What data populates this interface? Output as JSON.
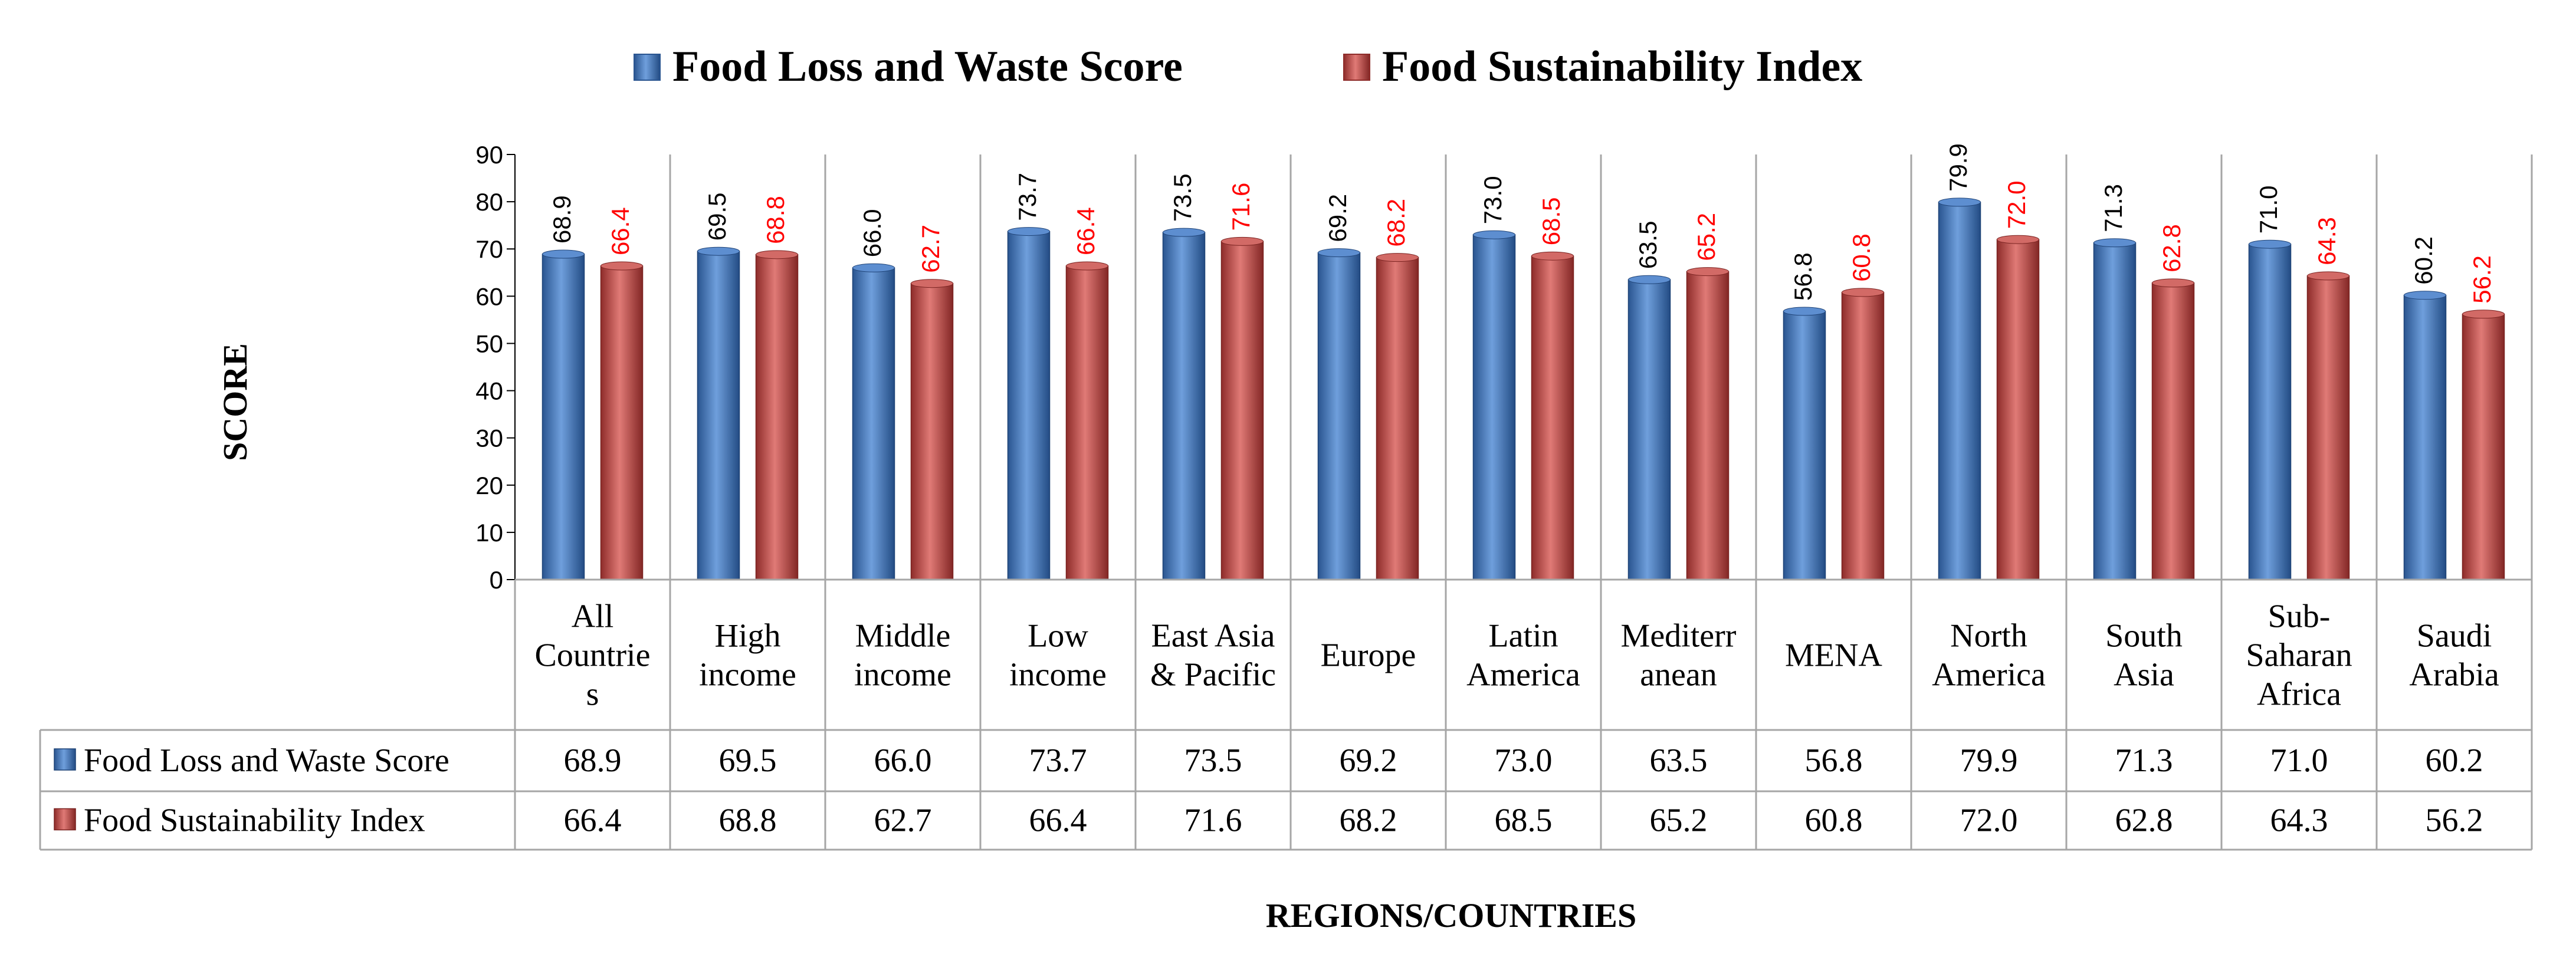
{
  "chart_data": {
    "type": "bar",
    "title": "",
    "xlabel": "REGIONS/COUNTRIES",
    "ylabel": "SCORE",
    "ylim": [
      0,
      90
    ],
    "yticks": [
      0,
      10,
      20,
      30,
      40,
      50,
      60,
      70,
      80,
      90
    ],
    "categories": [
      [
        "All",
        "Countrie",
        "s"
      ],
      [
        "High",
        "income"
      ],
      [
        "Middle",
        "income"
      ],
      [
        "Low",
        "income"
      ],
      [
        "East Asia",
        "& Pacific"
      ],
      [
        "Europe"
      ],
      [
        "Latin",
        "America"
      ],
      [
        "Mediterr",
        "anean"
      ],
      [
        "MENA"
      ],
      [
        "North",
        "America"
      ],
      [
        "South",
        "Asia"
      ],
      [
        "Sub-",
        "Saharan",
        "Africa"
      ],
      [
        "Saudi",
        "Arabia"
      ]
    ],
    "series": [
      {
        "name": "Food Loss and Waste Score",
        "color": "#4f81bd",
        "label_color": "#000000",
        "values": [
          68.9,
          69.5,
          66.0,
          73.7,
          73.5,
          69.2,
          73.0,
          63.5,
          56.8,
          79.9,
          71.3,
          71.0,
          60.2
        ],
        "labels": [
          "68.9",
          "69.5",
          "66.0",
          "73.7",
          "73.5",
          "69.2",
          "73.0",
          "63.5",
          "56.8",
          "79.9",
          "71.3",
          "71.0",
          "60.2"
        ]
      },
      {
        "name": "Food Sustainability Index",
        "color": "#c0504d",
        "label_color": "#ff0000",
        "values": [
          66.4,
          68.8,
          62.7,
          66.4,
          71.6,
          68.2,
          68.5,
          65.2,
          60.8,
          72.0,
          62.8,
          64.3,
          56.2
        ],
        "labels": [
          "66.4",
          "68.8",
          "62.7",
          "66.4",
          "71.6",
          "68.2",
          "68.5",
          "65.2",
          "60.8",
          "72.0",
          "62.8",
          "64.3",
          "56.2"
        ]
      }
    ],
    "legend_position": "top",
    "data_table": true,
    "grid": false
  }
}
